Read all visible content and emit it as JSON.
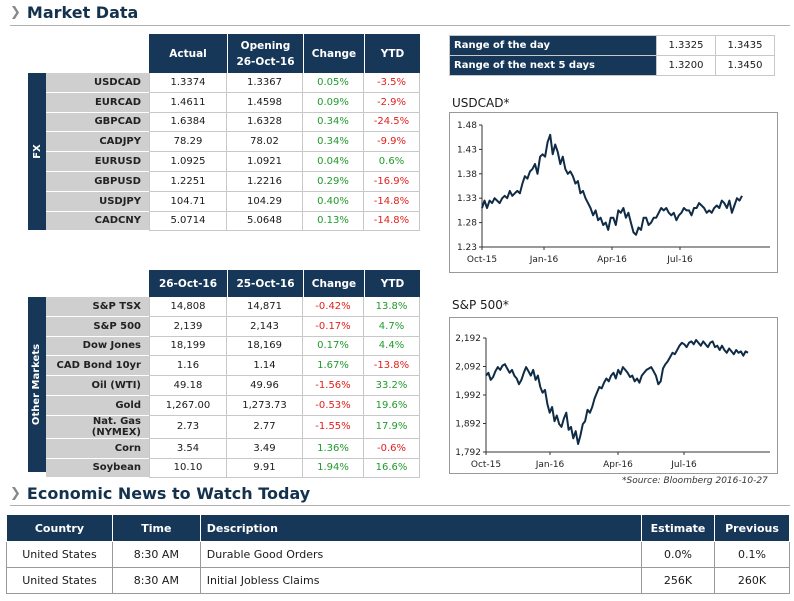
{
  "market_title": "Market Data",
  "fx": {
    "side_label": "FX",
    "headers": [
      "Actual",
      "Opening\n26-Oct-16",
      "Change",
      "YTD"
    ],
    "rows": [
      {
        "label": "USDCAD",
        "actual": "1.3374",
        "opening": "1.3367",
        "change": "0.05%",
        "ytd": "-3.5%"
      },
      {
        "label": "EURCAD",
        "actual": "1.4611",
        "opening": "1.4598",
        "change": "0.09%",
        "ytd": "-2.9%"
      },
      {
        "label": "GBPCAD",
        "actual": "1.6384",
        "opening": "1.6328",
        "change": "0.34%",
        "ytd": "-24.5%"
      },
      {
        "label": "CADJPY",
        "actual": "78.29",
        "opening": "78.02",
        "change": "0.34%",
        "ytd": "-9.9%"
      },
      {
        "label": "EURUSD",
        "actual": "1.0925",
        "opening": "1.0921",
        "change": "0.04%",
        "ytd": "0.6%"
      },
      {
        "label": "GBPUSD",
        "actual": "1.2251",
        "opening": "1.2216",
        "change": "0.29%",
        "ytd": "-16.9%"
      },
      {
        "label": "USDJPY",
        "actual": "104.71",
        "opening": "104.29",
        "change": "0.40%",
        "ytd": "-14.8%"
      },
      {
        "label": "CADCNY",
        "actual": "5.0714",
        "opening": "5.0648",
        "change": "0.13%",
        "ytd": "-14.8%"
      }
    ]
  },
  "other": {
    "side_label": "Other Markets",
    "headers": [
      "26-Oct-16",
      "25-Oct-16",
      "Change",
      "YTD"
    ],
    "rows": [
      {
        "label": "S&P TSX",
        "actual": "14,808",
        "opening": "14,871",
        "change": "-0.42%",
        "ytd": "13.8%"
      },
      {
        "label": "S&P 500",
        "actual": "2,139",
        "opening": "2,143",
        "change": "-0.17%",
        "ytd": "4.7%"
      },
      {
        "label": "Dow Jones",
        "actual": "18,199",
        "opening": "18,169",
        "change": "0.17%",
        "ytd": "4.4%"
      },
      {
        "label": "CAD Bond 10yr",
        "actual": "1.16",
        "opening": "1.14",
        "change": "1.67%",
        "ytd": "-13.8%"
      },
      {
        "label": "Oil (WTI)",
        "actual": "49.18",
        "opening": "49.96",
        "change": "-1.56%",
        "ytd": "33.2%"
      },
      {
        "label": "Gold",
        "actual": "1,267.00",
        "opening": "1,273.73",
        "change": "-0.53%",
        "ytd": "19.6%"
      },
      {
        "label": "Nat. Gas (NYMEX)",
        "actual": "2.73",
        "opening": "2.77",
        "change": "-1.55%",
        "ytd": "17.9%"
      },
      {
        "label": "Corn",
        "actual": "3.54",
        "opening": "3.49",
        "change": "1.36%",
        "ytd": "-0.6%"
      },
      {
        "label": "Soybean",
        "actual": "10.10",
        "opening": "9.91",
        "change": "1.94%",
        "ytd": "16.6%"
      }
    ]
  },
  "ranges": [
    {
      "label": "Range of the day",
      "low": "1.3325",
      "high": "1.3435"
    },
    {
      "label": "Range of the next 5 days",
      "low": "1.3200",
      "high": "1.3450"
    }
  ],
  "chart_data": [
    {
      "type": "line",
      "title": "USDCAD*",
      "x_ticks": [
        "Oct-15",
        "Jan-16",
        "Apr-16",
        "Jul-16"
      ],
      "y_ticks": [
        "1.48",
        "1.43",
        "1.38",
        "1.33",
        "1.28",
        "1.23"
      ],
      "ylim": [
        1.23,
        1.48
      ],
      "series": [
        {
          "values": [
            1.31,
            1.325,
            1.31,
            1.325,
            1.32,
            1.33,
            1.325,
            1.32,
            1.33,
            1.335,
            1.33,
            1.345,
            1.335,
            1.34,
            1.345,
            1.34,
            1.36,
            1.375,
            1.37,
            1.385,
            1.39,
            1.4,
            1.38,
            1.415,
            1.42,
            1.415,
            1.445,
            1.46,
            1.42,
            1.44,
            1.425,
            1.4,
            1.415,
            1.39,
            1.38,
            1.385,
            1.375,
            1.36,
            1.365,
            1.34,
            1.345,
            1.33,
            1.32,
            1.31,
            1.295,
            1.305,
            1.285,
            1.29,
            1.275,
            1.28,
            1.265,
            1.29,
            1.29,
            1.275,
            1.305,
            1.3,
            1.31,
            1.29,
            1.3,
            1.28,
            1.26,
            1.255,
            1.27,
            1.265,
            1.29,
            1.29,
            1.275,
            1.28,
            1.29,
            1.29,
            1.3,
            1.31,
            1.305,
            1.31,
            1.3,
            1.295,
            1.3,
            1.285,
            1.295,
            1.3,
            1.31,
            1.305,
            1.305,
            1.295,
            1.31,
            1.31,
            1.32,
            1.315,
            1.31,
            1.3,
            1.305,
            1.3,
            1.31,
            1.315,
            1.31,
            1.325,
            1.32,
            1.31,
            1.325,
            1.3,
            1.315,
            1.33,
            1.325,
            1.335
          ]
        }
      ]
    },
    {
      "type": "line",
      "title": "S&P 500*",
      "x_ticks": [
        "Oct-15",
        "Jan-16",
        "Apr-16",
        "Jul-16"
      ],
      "y_ticks": [
        "2,192",
        "2,092",
        "1,992",
        "1,892",
        "1,792"
      ],
      "ylim": [
        1792,
        2192
      ],
      "series": [
        {
          "values": [
            2060,
            2070,
            2045,
            2055,
            2075,
            2090,
            2080,
            2095,
            2100,
            2085,
            2070,
            2080,
            2060,
            2050,
            2030,
            2045,
            2070,
            2090,
            2075,
            2060,
            2080,
            2045,
            2060,
            2020,
            2000,
            2010,
            1960,
            1930,
            1950,
            1900,
            1920,
            1890,
            1880,
            1910,
            1930,
            1870,
            1880,
            1840,
            1865,
            1820,
            1850,
            1890,
            1900,
            1940,
            1930,
            1950,
            1980,
            2000,
            2020,
            2015,
            2035,
            2050,
            2040,
            2060,
            2070,
            2050,
            2080,
            2065,
            2090,
            2080,
            2070,
            2055,
            2060,
            2040,
            2050,
            2035,
            2060,
            2070,
            2080,
            2085,
            2090,
            2075,
            2060,
            2030,
            2040,
            2085,
            2100,
            2110,
            2125,
            2140,
            2135,
            2150,
            2165,
            2175,
            2170,
            2160,
            2175,
            2180,
            2170,
            2185,
            2175,
            2165,
            2180,
            2170,
            2160,
            2175,
            2180,
            2160,
            2165,
            2150,
            2165,
            2150,
            2140,
            2155,
            2145,
            2135,
            2150,
            2140,
            2145,
            2130,
            2145,
            2140
          ]
        }
      ]
    }
  ],
  "source_note": "*Source: Bloomberg  2016-10-27",
  "news": {
    "title": "Economic News to Watch Today",
    "headers": {
      "country": "Country",
      "time": "Time",
      "description": "Description",
      "estimate": "Estimate",
      "previous": "Previous"
    },
    "rows": [
      {
        "country": "United States",
        "time": "8:30 AM",
        "description": "Durable Good Orders",
        "estimate": "0.0%",
        "previous": "0.1%"
      },
      {
        "country": "United States",
        "time": "8:30 AM",
        "description": "Initial Jobless Claims",
        "estimate": "256K",
        "previous": "260K"
      }
    ]
  },
  "colors": {
    "navy": "#173759",
    "positive": "#1f9a2b",
    "negative": "#e2201c",
    "line": "#0f2b45"
  }
}
